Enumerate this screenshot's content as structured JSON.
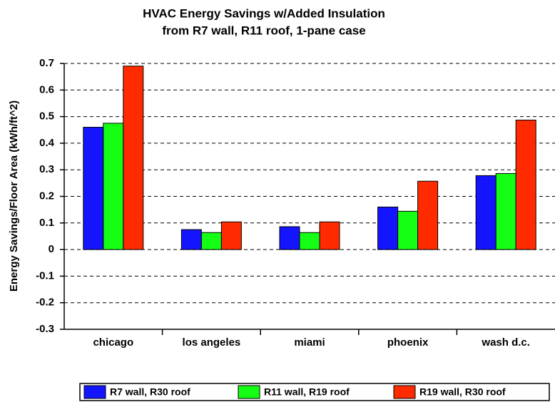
{
  "chart_data": {
    "type": "bar",
    "title": [
      "HVAC Energy Savings w/Added Insulation",
      "from R7 wall, R11 roof, 1-pane case"
    ],
    "y_label": "Energy Savings/Floor Area (kWh/ft^2)",
    "categories": [
      "chicago",
      "los angeles",
      "miami",
      "phoenix",
      "wash d.c."
    ],
    "series": [
      {
        "name": "R7 wall, R30 roof",
        "color": "#1414ff",
        "values": [
          0.46,
          0.075,
          0.086,
          0.16,
          0.278
        ]
      },
      {
        "name": "R11 wall, R19 roof",
        "color": "#14ff14",
        "values": [
          0.475,
          0.064,
          0.064,
          0.144,
          0.286
        ]
      },
      {
        "name": "R19 wall, R30 roof",
        "color": "#ff2a00",
        "values": [
          0.69,
          0.104,
          0.104,
          0.257,
          0.487
        ]
      }
    ],
    "ylim": [
      -0.3,
      0.7
    ],
    "yticks": [
      0.7,
      0.6,
      0.5,
      0.4,
      0.3,
      0.2,
      0.1,
      0,
      -0.1,
      -0.2,
      -0.3
    ],
    "grid": true
  }
}
